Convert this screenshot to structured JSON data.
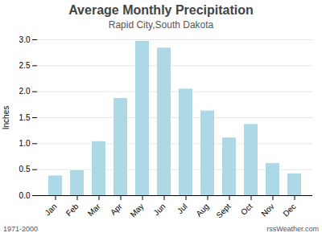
{
  "chart_data": {
    "type": "bar",
    "title": "Average Monthly Precipitation",
    "subtitle": "Rapid City,South Dakota",
    "ylabel": "Inches",
    "categories": [
      "Jan",
      "Feb",
      "Mar",
      "Apr",
      "May",
      "Jun",
      "Jul",
      "Aug",
      "Sept",
      "Oct",
      "Nov",
      "Dec"
    ],
    "values": [
      0.38,
      0.48,
      1.04,
      1.87,
      2.97,
      2.84,
      2.05,
      1.63,
      1.11,
      1.37,
      0.62,
      0.42
    ],
    "color": "#ADD8E6",
    "ylim": [
      0.0,
      3.0
    ],
    "yticks": [
      {
        "value": 0.0,
        "label": "0.0"
      },
      0.5,
      {
        "value": 1.0,
        "label": "1.0"
      },
      1.5,
      {
        "value": 2.0,
        "label": "2.0"
      },
      2.5,
      {
        "value": 3.0,
        "label": "3.0"
      }
    ],
    "grid": true,
    "annotations": [
      "1971-2000",
      "rssWeather.com"
    ]
  }
}
